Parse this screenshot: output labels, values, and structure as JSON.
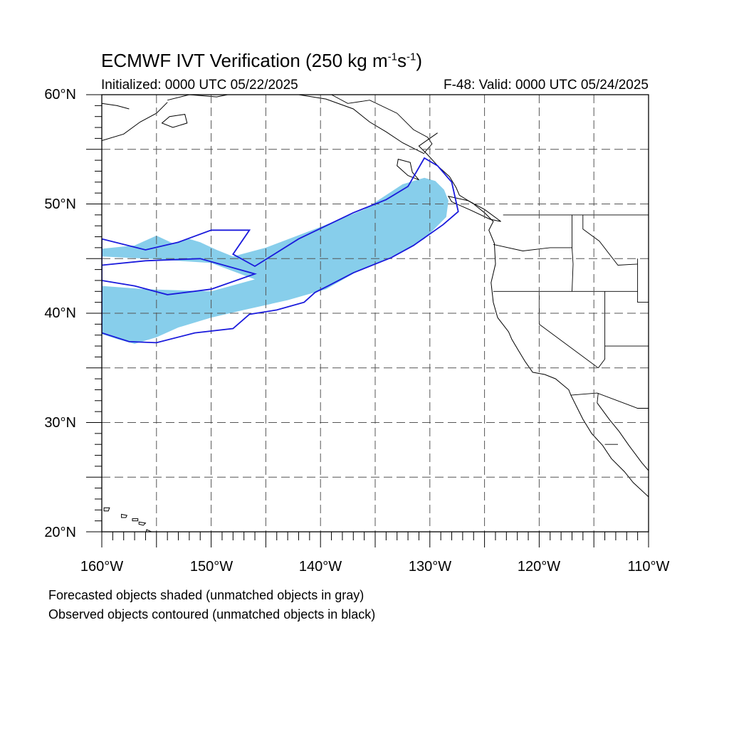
{
  "title": {
    "main": "ECMWF IVT Verification (250 kg m",
    "sup1": "-1",
    "mid": "s",
    "sup2": "-1",
    "close": ")"
  },
  "subtitle": {
    "initialized": "Initialized: 0000 UTC 05/22/2025",
    "valid": "F-48: Valid: 0000 UTC 05/24/2025"
  },
  "axes": {
    "lat_labels": [
      "60°N",
      "50°N",
      "40°N",
      "30°N",
      "20°N"
    ],
    "lon_labels": [
      "160°W",
      "150°W",
      "140°W",
      "130°W",
      "120°W",
      "110°W"
    ],
    "lat_range": [
      20,
      60
    ],
    "lon_range": [
      -160,
      -110
    ],
    "grid_interval_deg": 5,
    "grid": true
  },
  "legend": {
    "forecast": "Forecasted objects shaded (unmatched objects in gray)",
    "observed": "Observed objects contoured (unmatched objects in black)"
  },
  "colors": {
    "forecast_fill": "#87ceeb",
    "observed_contour": "#1a1adc",
    "coastline": "#000000",
    "gridline": "#555555"
  },
  "chart_data": {
    "type": "map",
    "region": "Northeast Pacific / Western North America",
    "forecast_object": {
      "description_color": "light blue shaded",
      "outline_lonlat": [
        [
          -160,
          45.9
        ],
        [
          -157,
          46.2
        ],
        [
          -155,
          47.1
        ],
        [
          -153.5,
          46.4
        ],
        [
          -152,
          46.8
        ],
        [
          -151,
          46.5
        ],
        [
          -149.5,
          45.8
        ],
        [
          -148,
          45.2
        ],
        [
          -145,
          46.0
        ],
        [
          -140,
          47.9
        ],
        [
          -136,
          49.5
        ],
        [
          -132.5,
          51.8
        ],
        [
          -130.5,
          52.4
        ],
        [
          -129.5,
          52.1
        ],
        [
          -128.7,
          51.3
        ],
        [
          -128.3,
          50.3
        ],
        [
          -128.5,
          48.8
        ],
        [
          -130.5,
          46.8
        ],
        [
          -133,
          45.4
        ],
        [
          -136.5,
          43.9
        ],
        [
          -139.5,
          42.2
        ],
        [
          -143,
          41.2
        ],
        [
          -147,
          40.3
        ],
        [
          -150,
          39.6
        ],
        [
          -153,
          38.7
        ],
        [
          -155,
          37.8
        ],
        [
          -157,
          37.2
        ],
        [
          -158.5,
          37.6
        ],
        [
          -160,
          38.1
        ],
        [
          -160,
          42.5
        ],
        [
          -156,
          42.2
        ],
        [
          -150,
          42.0
        ],
        [
          -146,
          43.1
        ],
        [
          -150,
          44.6
        ],
        [
          -156,
          45.0
        ],
        [
          -160,
          45.2
        ]
      ]
    },
    "observed_object": {
      "description_color": "blue contour",
      "outline_lonlat": [
        [
          -160,
          46.8
        ],
        [
          -156,
          45.8
        ],
        [
          -153,
          46.5
        ],
        [
          -150,
          47.6
        ],
        [
          -146.5,
          47.6
        ],
        [
          -148,
          45.4
        ],
        [
          -146,
          44.3
        ],
        [
          -142,
          46.8
        ],
        [
          -137,
          49.2
        ],
        [
          -134,
          50.4
        ],
        [
          -132,
          51.6
        ],
        [
          -130.5,
          54.2
        ],
        [
          -129.3,
          53.5
        ],
        [
          -128,
          52.0
        ],
        [
          -127.4,
          49.3
        ],
        [
          -128.8,
          48.1
        ],
        [
          -131.5,
          46.2
        ],
        [
          -133.5,
          45.1
        ],
        [
          -137,
          43.7
        ],
        [
          -139.3,
          42.5
        ],
        [
          -140.5,
          41.9
        ],
        [
          -141.5,
          41.0
        ],
        [
          -144,
          40.3
        ],
        [
          -146.5,
          39.9
        ],
        [
          -148,
          38.6
        ],
        [
          -151.5,
          38.2
        ],
        [
          -155,
          37.3
        ],
        [
          -157.5,
          37.4
        ],
        [
          -160,
          38.2
        ]
      ],
      "hole_lonlat": [
        [
          -160,
          43.0
        ],
        [
          -157,
          42.5
        ],
        [
          -154,
          41.7
        ],
        [
          -150,
          42.2
        ],
        [
          -146,
          43.6
        ],
        [
          -151,
          45.0
        ],
        [
          -156,
          44.8
        ],
        [
          -160,
          44.4
        ]
      ]
    }
  }
}
